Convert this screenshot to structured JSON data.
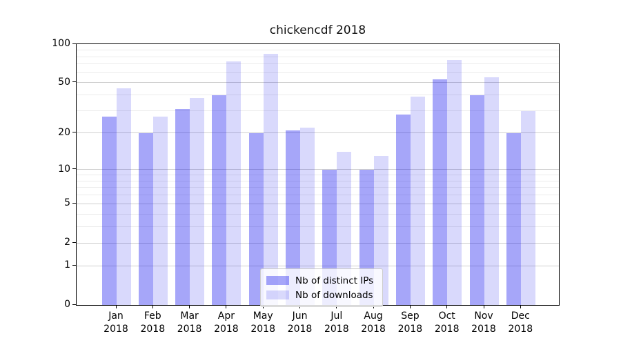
{
  "figure": {
    "title": "chickencdf 2018",
    "background": "#ffffff"
  },
  "chart_data": {
    "type": "bar",
    "title": "chickencdf 2018",
    "categories": [
      "Jan 2018",
      "Feb 2018",
      "Mar 2018",
      "Apr 2018",
      "May 2018",
      "Jun 2018",
      "Jul 2018",
      "Aug 2018",
      "Sep 2018",
      "Oct 2018",
      "Nov 2018",
      "Dec 2018"
    ],
    "x_tick_month": [
      "Jan",
      "Feb",
      "Mar",
      "Apr",
      "May",
      "Jun",
      "Jul",
      "Aug",
      "Sep",
      "Oct",
      "Nov",
      "Dec"
    ],
    "x_tick_year": "2018",
    "series": [
      {
        "name": "Nb of distinct IPs",
        "color": "rgba(0,0,238,0.35)",
        "values": [
          27,
          20,
          31,
          40,
          20,
          21,
          10,
          10,
          28,
          53,
          40,
          20
        ]
      },
      {
        "name": "Nb of downloads",
        "color": "rgba(0,0,238,0.15)",
        "values": [
          45,
          27,
          38,
          73,
          84,
          22,
          14,
          13,
          39,
          75,
          55,
          30
        ]
      }
    ],
    "y_axis": {
      "scale": "log1p",
      "lim": [
        0,
        100
      ],
      "ticks": [
        0,
        1,
        2,
        5,
        10,
        20,
        50,
        100
      ],
      "minor_gridlines": [
        3,
        4,
        6,
        7,
        8,
        9,
        30,
        40,
        60,
        70,
        80,
        90
      ]
    },
    "grid": true,
    "legend_position": "lower center"
  },
  "colors": {
    "major_grid": "#cfcfcf",
    "minor_grid": "#ebebeb",
    "spine": "#000000",
    "legend_border": "#cccccc"
  }
}
